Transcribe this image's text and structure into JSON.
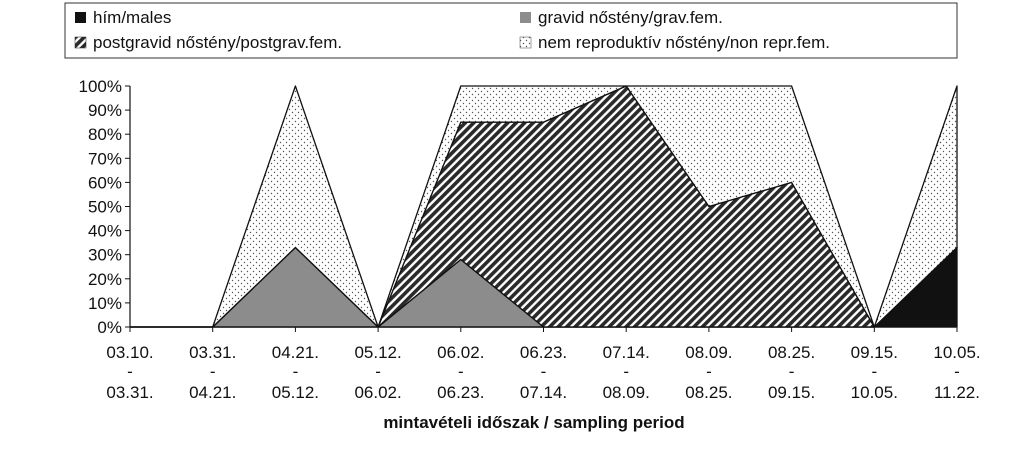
{
  "chart_data": {
    "type": "area",
    "stacked": true,
    "title": "",
    "xlabel": "mintavételi időszak / sampling period",
    "ylabel": "",
    "ylim": [
      0,
      100
    ],
    "y_ticks": [
      "0%",
      "10%",
      "20%",
      "30%",
      "40%",
      "50%",
      "60%",
      "70%",
      "80%",
      "90%",
      "100%"
    ],
    "legend_position": "top",
    "categories": [
      {
        "start": "03.10.",
        "sep": "-",
        "end": "03.31."
      },
      {
        "start": "03.31.",
        "sep": "-",
        "end": "04.21."
      },
      {
        "start": "04.21.",
        "sep": "-",
        "end": "05.12."
      },
      {
        "start": "05.12.",
        "sep": "-",
        "end": "06.02."
      },
      {
        "start": "06.02.",
        "sep": "-",
        "end": "06.23."
      },
      {
        "start": "06.23.",
        "sep": "-",
        "end": "07.14."
      },
      {
        "start": "07.14.",
        "sep": "-",
        "end": "08.09."
      },
      {
        "start": "08.09.",
        "sep": "-",
        "end": "08.25."
      },
      {
        "start": "08.25.",
        "sep": "-",
        "end": "09.15."
      },
      {
        "start": "09.15.",
        "sep": "-",
        "end": "10.05."
      },
      {
        "start": "10.05.",
        "sep": "-",
        "end": "11.22."
      }
    ],
    "series": [
      {
        "name": "hím/males",
        "pattern": "solid-black",
        "values": [
          0,
          0,
          0,
          0,
          0,
          0,
          0,
          0,
          0,
          0,
          33
        ]
      },
      {
        "name": "gravid nőstény/grav.fem.",
        "pattern": "solid-gray",
        "values": [
          0,
          0,
          33,
          0,
          28,
          0,
          0,
          0,
          0,
          0,
          0
        ]
      },
      {
        "name": "postgravid nőstény/postgrav.fem.",
        "pattern": "diagonal-hatch",
        "values": [
          0,
          0,
          0,
          0,
          57,
          85,
          100,
          50,
          60,
          0,
          0
        ]
      },
      {
        "name": "nem reproduktív nőstény/non repr.fem.",
        "pattern": "dotted",
        "values": [
          0,
          0,
          67,
          0,
          15,
          15,
          0,
          50,
          40,
          0,
          67
        ]
      }
    ]
  }
}
